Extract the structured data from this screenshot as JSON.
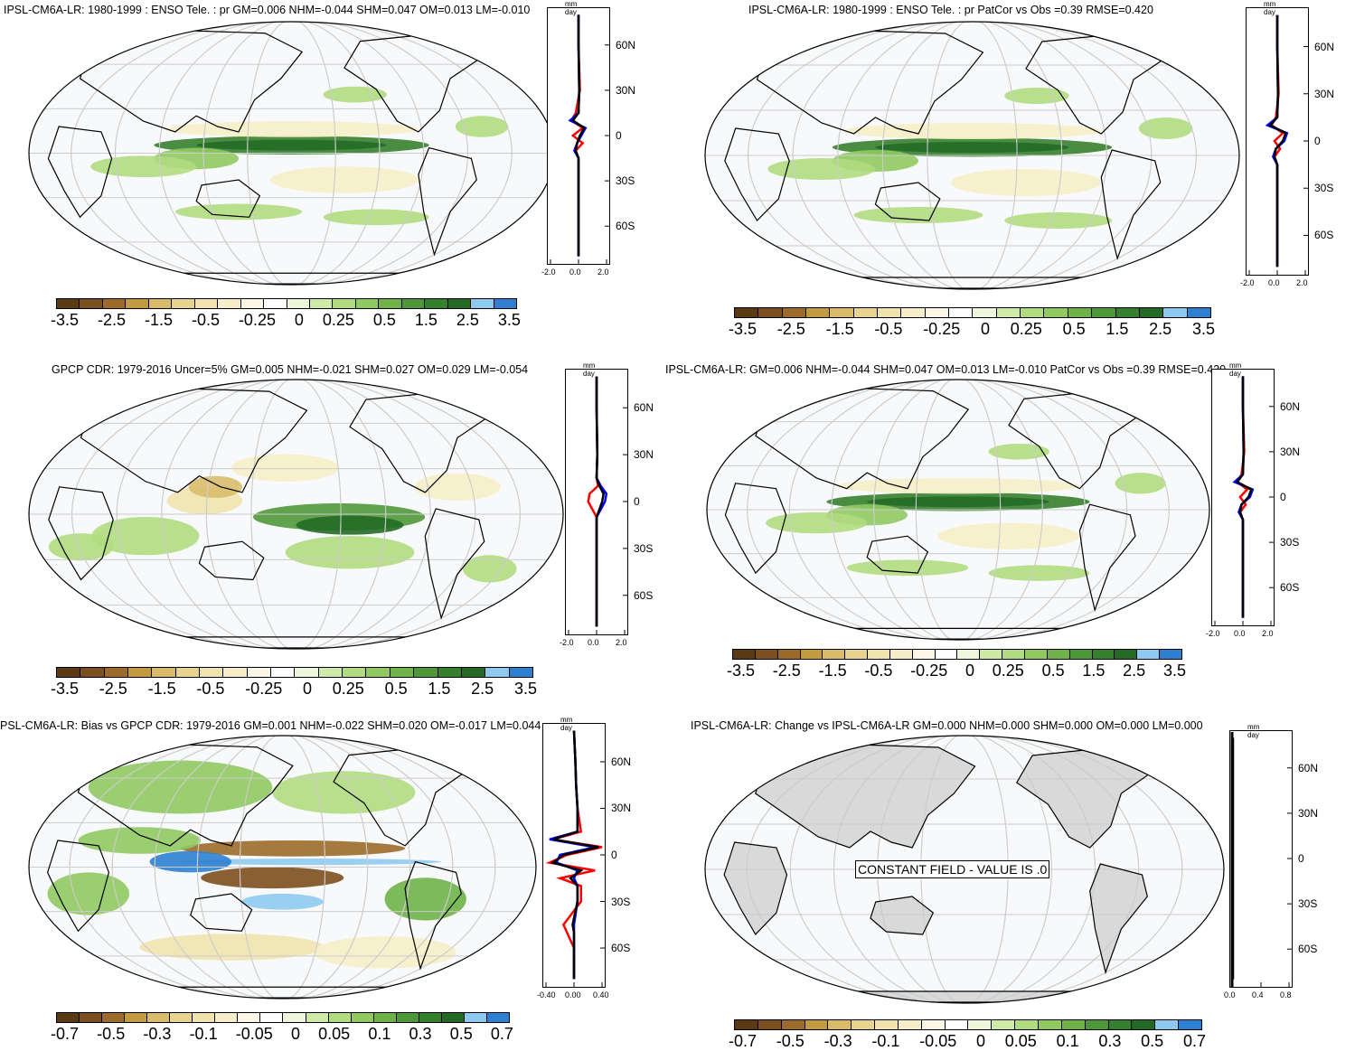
{
  "colorbar": {
    "colors": [
      "#5a3a12",
      "#7b4f1e",
      "#9c6a2a",
      "#c29a3f",
      "#d9bc6a",
      "#e8d48e",
      "#f0e3ae",
      "#f6eec8",
      "#fbf7e6",
      "#ffffff",
      "#eef7dc",
      "#cfe9a6",
      "#b0db7e",
      "#8fc960",
      "#6fb24a",
      "#4f983a",
      "#35802e",
      "#246a26",
      "#8ecaf0",
      "#2f7fd1"
    ],
    "labels_std": [
      "-3.5",
      "-2.5",
      "-1.5",
      "-0.5",
      "-0.25",
      "0",
      "0.25",
      "0.5",
      "1.5",
      "2.5",
      "3.5"
    ],
    "labels_bias": [
      "-0.7",
      "-0.5",
      "-0.3",
      "-0.1",
      "-0.05",
      "0",
      "0.05",
      "0.1",
      "0.3",
      "0.5",
      "0.7"
    ]
  },
  "zonal_units": "mm day",
  "lat_labels": [
    "60N",
    "30N",
    "0",
    "30S",
    "60S"
  ],
  "panels": [
    {
      "title": "IPSL-CM6A-LR: 1980-1999 : ENSO Tele. : pr GM=0.006 NHM=-0.044 SHM=0.047 OM=0.013 LM=-0.010",
      "xticks": [
        "-2.0",
        "0.0",
        "2.0"
      ],
      "bar": "labels_std"
    },
    {
      "title": "IPSL-CM6A-LR: 1980-1999 : ENSO Tele. : pr PatCor vs Obs =0.39 RMSE=0.420",
      "xticks": [
        "-2.0",
        "0.0",
        "2.0"
      ],
      "bar": "labels_std"
    },
    {
      "title": "GPCP CDR: 1979-2016 Uncer=5% GM=0.005 NHM=-0.021 SHM=0.027 OM=0.029 LM=-0.054",
      "xticks": [
        "-2.0",
        "0.0",
        "2.0"
      ],
      "bar": "labels_std"
    },
    {
      "title": "IPSL-CM6A-LR: GM=0.006 NHM=-0.044 SHM=0.047 OM=0.013 LM=-0.010 PatCor vs Obs =0.39 RMSE=0.420",
      "xticks": [
        "-2.0",
        "0.0",
        "2.0"
      ],
      "bar": "labels_std"
    },
    {
      "title": "PSL-CM6A-LR: Bias vs GPCP CDR: 1979-2016 GM=0.001 NHM=-0.022 SHM=0.020 OM=-0.017 LM=0.044",
      "xticks": [
        "-0.40",
        "0.00",
        "0.40"
      ],
      "bar": "labels_bias"
    },
    {
      "title": "IPSL-CM6A-LR: Change vs IPSL-CM6A-LR GM=0.000 NHM=0.000 SHM=0.000 OM=0.000 LM=0.000",
      "xticks": [
        "0.0",
        "0.4",
        "0.8"
      ],
      "bar": "labels_bias",
      "note": "CONSTANT FIELD - VALUE IS .0"
    }
  ],
  "chart_data": [
    {
      "type": "heatmap",
      "title": "IPSL-CM6A-LR: 1980-1999 : ENSO Tele. : pr GM=0.006 NHM=-0.044 SHM=0.047 OM=0.013 LM=-0.010",
      "colorbar_labels": [
        "-3.5",
        "-2.5",
        "-1.5",
        "-0.5",
        "-0.25",
        "0",
        "0.25",
        "0.5",
        "1.5",
        "2.5",
        "3.5"
      ],
      "zonal_mean": {
        "ylabels": [
          "60N",
          "30N",
          "0",
          "30S",
          "60S"
        ],
        "xlim": [
          -2.0,
          2.0
        ],
        "lat": [
          80,
          60,
          30,
          15,
          10,
          5,
          0,
          -5,
          -10,
          -15,
          -30,
          -60,
          -80
        ],
        "series": [
          {
            "color": "red",
            "values": [
              0,
              0,
              0.1,
              -0.2,
              -0.5,
              0.3,
              -0.4,
              0.3,
              -0.2,
              0,
              0,
              0,
              0
            ]
          },
          {
            "color": "blue",
            "values": [
              0,
              0,
              0.05,
              0,
              -0.6,
              0.5,
              0.2,
              -0.1,
              -0.3,
              0,
              0,
              0,
              0
            ]
          },
          {
            "color": "black",
            "values": [
              0,
              0,
              0.05,
              0,
              -0.4,
              0.4,
              0.1,
              -0.1,
              -0.2,
              0,
              0,
              0,
              0
            ]
          }
        ]
      }
    },
    {
      "type": "heatmap",
      "title": "IPSL-CM6A-LR: 1980-1999 : ENSO Tele. : pr PatCor vs Obs =0.39 RMSE=0.420",
      "colorbar_labels": [
        "-3.5",
        "-2.5",
        "-1.5",
        "-0.5",
        "-0.25",
        "0",
        "0.25",
        "0.5",
        "1.5",
        "2.5",
        "3.5"
      ],
      "zonal_mean": {
        "ylabels": [
          "60N",
          "30N",
          "0",
          "30S",
          "60S"
        ],
        "xlim": [
          -2.0,
          2.0
        ],
        "lat": [
          80,
          60,
          30,
          15,
          10,
          5,
          0,
          -5,
          -10,
          -15,
          -30,
          -60,
          -80
        ],
        "series": [
          {
            "color": "red",
            "values": [
              0,
              0,
              0.1,
              -0.1,
              -0.4,
              0.4,
              -0.2,
              0.2,
              -0.2,
              0,
              0,
              0,
              0
            ]
          },
          {
            "color": "blue",
            "values": [
              0,
              0,
              0.05,
              0,
              -0.7,
              0.7,
              0.5,
              -0.1,
              -0.3,
              0,
              0,
              0,
              0
            ]
          },
          {
            "color": "black",
            "values": [
              0,
              0,
              0.05,
              0,
              -0.5,
              0.6,
              0.4,
              -0.1,
              -0.2,
              0,
              0,
              0,
              0
            ]
          }
        ]
      }
    },
    {
      "type": "heatmap",
      "title": "GPCP CDR: 1979-2016 Uncer=5% GM=0.005 NHM=-0.021 SHM=0.027 OM=0.029 LM=-0.054",
      "colorbar_labels": [
        "-3.5",
        "-2.5",
        "-1.5",
        "-0.5",
        "-0.25",
        "0",
        "0.25",
        "0.5",
        "1.5",
        "2.5",
        "3.5"
      ],
      "zonal_mean": {
        "ylabels": [
          "60N",
          "30N",
          "0",
          "30S",
          "60S"
        ],
        "xlim": [
          -2.0,
          2.0
        ],
        "lat": [
          80,
          60,
          30,
          15,
          10,
          5,
          0,
          -5,
          -10,
          -15,
          -30,
          -60,
          -80
        ],
        "series": [
          {
            "color": "red",
            "values": [
              0,
              0,
              0.05,
              0,
              0.1,
              -0.5,
              -0.6,
              -0.3,
              0,
              0,
              0,
              0,
              0
            ]
          },
          {
            "color": "blue",
            "values": [
              0,
              0,
              0.05,
              0,
              0.3,
              0.7,
              0.6,
              0.3,
              0,
              0,
              0,
              0,
              0
            ]
          },
          {
            "color": "black",
            "values": [
              0,
              0,
              0.05,
              0,
              0.2,
              0.5,
              0.4,
              0.2,
              0,
              0,
              0,
              0,
              0
            ]
          }
        ]
      }
    },
    {
      "type": "heatmap",
      "title": "IPSL-CM6A-LR: GM=0.006 NHM=-0.044 SHM=0.047 OM=0.013 LM=-0.010 PatCor vs Obs =0.39 RMSE=0.420",
      "colorbar_labels": [
        "-3.5",
        "-2.5",
        "-1.5",
        "-0.5",
        "-0.25",
        "0",
        "0.25",
        "0.5",
        "1.5",
        "2.5",
        "3.5"
      ],
      "zonal_mean": {
        "ylabels": [
          "60N",
          "30N",
          "0",
          "30S",
          "60S"
        ],
        "xlim": [
          -2.0,
          2.0
        ],
        "lat": [
          80,
          60,
          30,
          15,
          10,
          5,
          0,
          -5,
          -10,
          -15,
          -30,
          -60,
          -80
        ],
        "series": [
          {
            "color": "red",
            "values": [
              0,
              0,
              0.1,
              -0.1,
              -0.4,
              0.3,
              -0.2,
              0.2,
              -0.2,
              0,
              0,
              0,
              0
            ]
          },
          {
            "color": "blue",
            "values": [
              0,
              0,
              0.05,
              0,
              -0.6,
              0.7,
              0.5,
              -0.1,
              -0.3,
              0,
              0,
              0,
              0
            ]
          },
          {
            "color": "black",
            "values": [
              0,
              0,
              0.05,
              0,
              -0.4,
              0.6,
              0.4,
              -0.1,
              -0.2,
              0,
              0,
              0,
              0
            ]
          }
        ]
      }
    },
    {
      "type": "heatmap",
      "title": "PSL-CM6A-LR: Bias vs GPCP CDR: 1979-2016 GM=0.001 NHM=-0.022 SHM=0.020 OM=-0.017 LM=0.044",
      "colorbar_labels": [
        "-0.7",
        "-0.5",
        "-0.3",
        "-0.1",
        "-0.05",
        "0",
        "0.05",
        "0.1",
        "0.3",
        "0.5",
        "0.7"
      ],
      "zonal_mean": {
        "ylabels": [
          "60N",
          "30N",
          "0",
          "30S",
          "60S"
        ],
        "xlim": [
          -0.4,
          0.4
        ],
        "lat": [
          80,
          60,
          45,
          30,
          15,
          10,
          5,
          0,
          -5,
          -10,
          -15,
          -20,
          -30,
          -45,
          -50,
          -60,
          -80
        ],
        "series": [
          {
            "color": "red",
            "values": [
              0,
              0.02,
              0.03,
              0.05,
              0.1,
              -0.3,
              0.4,
              -0.1,
              -0.35,
              0.3,
              -0.2,
              0.1,
              0.1,
              -0.15,
              -0.1,
              0,
              0
            ]
          },
          {
            "color": "blue",
            "values": [
              0,
              0.02,
              0.03,
              0.05,
              0.05,
              -0.35,
              0.3,
              -0.2,
              -0.25,
              0.05,
              0,
              0.05,
              0.05,
              0,
              0,
              0,
              0
            ]
          },
          {
            "color": "black",
            "values": [
              0,
              0.02,
              0.03,
              0.05,
              0.05,
              -0.3,
              0.35,
              -0.15,
              -0.3,
              0.1,
              -0.05,
              0.05,
              0.05,
              -0.02,
              0,
              0,
              0
            ]
          }
        ]
      }
    },
    {
      "type": "heatmap",
      "title": "IPSL-CM6A-LR: Change vs IPSL-CM6A-LR GM=0.000 NHM=0.000 SHM=0.000 OM=0.000 LM=0.000",
      "colorbar_labels": [
        "-0.7",
        "-0.5",
        "-0.3",
        "-0.1",
        "-0.05",
        "0",
        "0.05",
        "0.1",
        "0.3",
        "0.5",
        "0.7"
      ],
      "annotation": "CONSTANT FIELD - VALUE IS .0",
      "zonal_mean": {
        "ylabels": [
          "60N",
          "30N",
          "0",
          "30S",
          "60S"
        ],
        "xlim": [
          0.0,
          0.8
        ],
        "lat": [
          80,
          -80
        ],
        "series": [
          {
            "color": "black",
            "values": [
              0,
              0
            ]
          }
        ]
      }
    }
  ]
}
